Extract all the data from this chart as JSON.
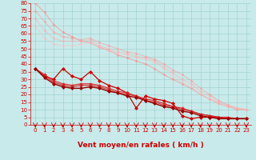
{
  "background_color": "#c8eaea",
  "grid_color": "#99cccc",
  "xlabel": "Vent moyen/en rafales ( km/h )",
  "ylabel_ticks": [
    0,
    5,
    10,
    15,
    20,
    25,
    30,
    35,
    40,
    45,
    50,
    55,
    60,
    65,
    70,
    75,
    80
  ],
  "xlim": [
    -0.5,
    23.5
  ],
  "ylim": [
    0,
    80
  ],
  "x": [
    0,
    1,
    2,
    3,
    4,
    5,
    6,
    7,
    8,
    9,
    10,
    11,
    12,
    13,
    14,
    15,
    16,
    17,
    18,
    19,
    20,
    21,
    22,
    23
  ],
  "series": [
    {
      "color": "#ff8888",
      "alpha": 0.6,
      "linewidth": 0.8,
      "markersize": 2.0,
      "y": [
        80,
        74,
        66,
        61,
        58,
        55,
        54,
        51,
        49,
        46,
        44,
        42,
        40,
        37,
        33,
        30,
        27,
        24,
        20,
        17,
        14,
        12,
        10,
        10
      ]
    },
    {
      "color": "#ff9999",
      "alpha": 0.55,
      "linewidth": 0.8,
      "markersize": 2.0,
      "y": [
        75,
        68,
        61,
        58,
        57,
        56,
        57,
        54,
        52,
        50,
        48,
        47,
        45,
        43,
        40,
        36,
        33,
        29,
        24,
        20,
        16,
        13,
        11,
        10
      ]
    },
    {
      "color": "#ffaaaa",
      "alpha": 0.5,
      "linewidth": 0.8,
      "markersize": 2.0,
      "y": [
        70,
        62,
        57,
        55,
        55,
        55,
        56,
        52,
        50,
        48,
        47,
        45,
        44,
        42,
        38,
        34,
        30,
        27,
        22,
        19,
        15,
        13,
        11,
        10
      ]
    },
    {
      "color": "#ffbbbb",
      "alpha": 0.45,
      "linewidth": 0.8,
      "markersize": 2.0,
      "y": [
        65,
        57,
        53,
        52,
        52,
        53,
        54,
        51,
        49,
        47,
        46,
        44,
        43,
        41,
        37,
        32,
        28,
        25,
        20,
        17,
        14,
        12,
        11,
        10
      ]
    },
    {
      "color": "#cc0000",
      "alpha": 1.0,
      "linewidth": 0.9,
      "markersize": 2.5,
      "y": [
        37,
        32,
        30,
        37,
        32,
        30,
        35,
        29,
        26,
        24,
        21,
        11,
        19,
        17,
        16,
        14,
        6,
        4,
        5,
        5,
        5,
        4,
        4,
        4
      ]
    },
    {
      "color": "#dd2222",
      "alpha": 0.9,
      "linewidth": 0.9,
      "markersize": 2.3,
      "y": [
        37,
        33,
        29,
        27,
        26,
        27,
        27,
        26,
        24,
        22,
        21,
        19,
        17,
        16,
        14,
        12,
        11,
        9,
        7,
        6,
        5,
        5,
        4,
        4
      ]
    },
    {
      "color": "#cc2222",
      "alpha": 0.85,
      "linewidth": 0.9,
      "markersize": 2.3,
      "y": [
        37,
        32,
        28,
        26,
        25,
        26,
        26,
        25,
        23,
        21,
        20,
        19,
        16,
        15,
        13,
        12,
        10,
        9,
        7,
        6,
        5,
        4,
        4,
        4
      ]
    },
    {
      "color": "#990000",
      "alpha": 1.0,
      "linewidth": 1.0,
      "markersize": 2.5,
      "y": [
        37,
        31,
        27,
        25,
        24,
        24,
        25,
        24,
        22,
        21,
        19,
        18,
        16,
        14,
        12,
        11,
        9,
        8,
        6,
        5,
        4,
        4,
        4,
        4
      ]
    }
  ],
  "xlabel_color": "#cc0000",
  "xlabel_fontsize": 6.5,
  "tick_color": "#cc0000",
  "tick_fontsize": 5.0,
  "arrow_color": "#cc0000"
}
